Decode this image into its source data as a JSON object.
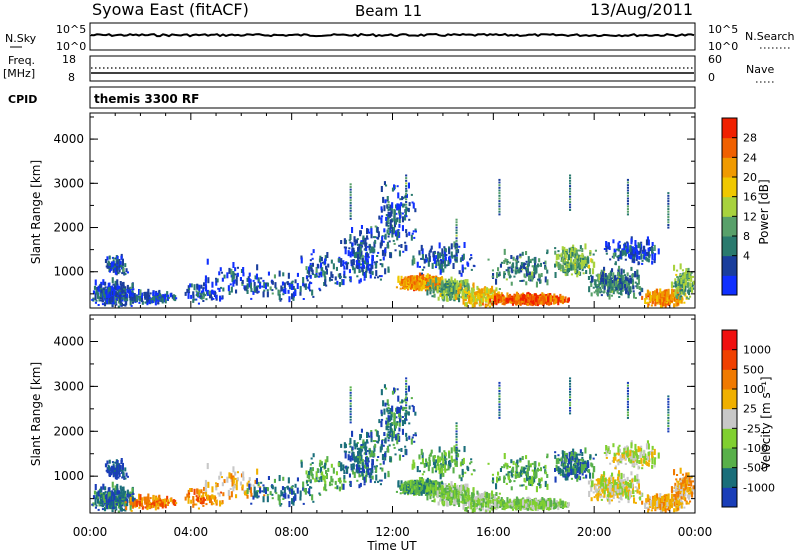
{
  "header": {
    "station": "Syowa East (fitACF)",
    "beam": "Beam 11",
    "date": "13/Aug/2011"
  },
  "noise_panel": {
    "left_label": "N.Sky",
    "left_ticks": [
      "10^5",
      "10^0"
    ],
    "right_ticks": [
      "10^5",
      "10^0"
    ],
    "right_label": "N.Search"
  },
  "freq_panel": {
    "left_label_1": "Freq.",
    "left_label_2": "[MHz]",
    "left_ticks": [
      "18",
      "8"
    ],
    "right_ticks": [
      "60",
      "0"
    ],
    "right_label": "Nave"
  },
  "cpid_panel": {
    "label": "CPID",
    "text": "themis 3300 RF"
  },
  "chart_data": [
    {
      "type": "heatmap",
      "title": "",
      "ylabel": "Slant Range [km]",
      "yticks": [
        "4000",
        "3000",
        "2000",
        "1000"
      ],
      "ylim": [
        180,
        4590
      ],
      "xlim": [
        0,
        24
      ],
      "colorbar": {
        "label": "Power [dB]",
        "ticks": [
          "28",
          "24",
          "20",
          "16",
          "12",
          "8",
          "4"
        ],
        "range": [
          0,
          30
        ],
        "colors": [
          "#1030ff",
          "#1a3e9c",
          "#2a7a6e",
          "#58a06a",
          "#a8d23e",
          "#f0c800",
          "#f09a00",
          "#f06000",
          "#f02000"
        ]
      }
    },
    {
      "type": "heatmap",
      "title": "",
      "ylabel": "Slant Range [km]",
      "yticks": [
        "4000",
        "3000",
        "2000",
        "1000"
      ],
      "ylim": [
        180,
        4590
      ],
      "xlim": [
        0,
        24
      ],
      "xlabel": "Time UT",
      "xticks": [
        "00:00",
        "04:00",
        "08:00",
        "12:00",
        "16:00",
        "20:00",
        "00:00"
      ],
      "colorbar": {
        "label": "Velocity [m s⁻¹]",
        "ticks": [
          "1000",
          "500",
          "100",
          "25",
          "-25",
          "-100",
          "-500",
          "-1000"
        ],
        "colors": [
          "#1a3eb8",
          "#1a6e7a",
          "#58b04a",
          "#80d030",
          "#c8c8c8",
          "#f0b000",
          "#f07a00",
          "#f04000",
          "#f01010"
        ]
      }
    }
  ]
}
